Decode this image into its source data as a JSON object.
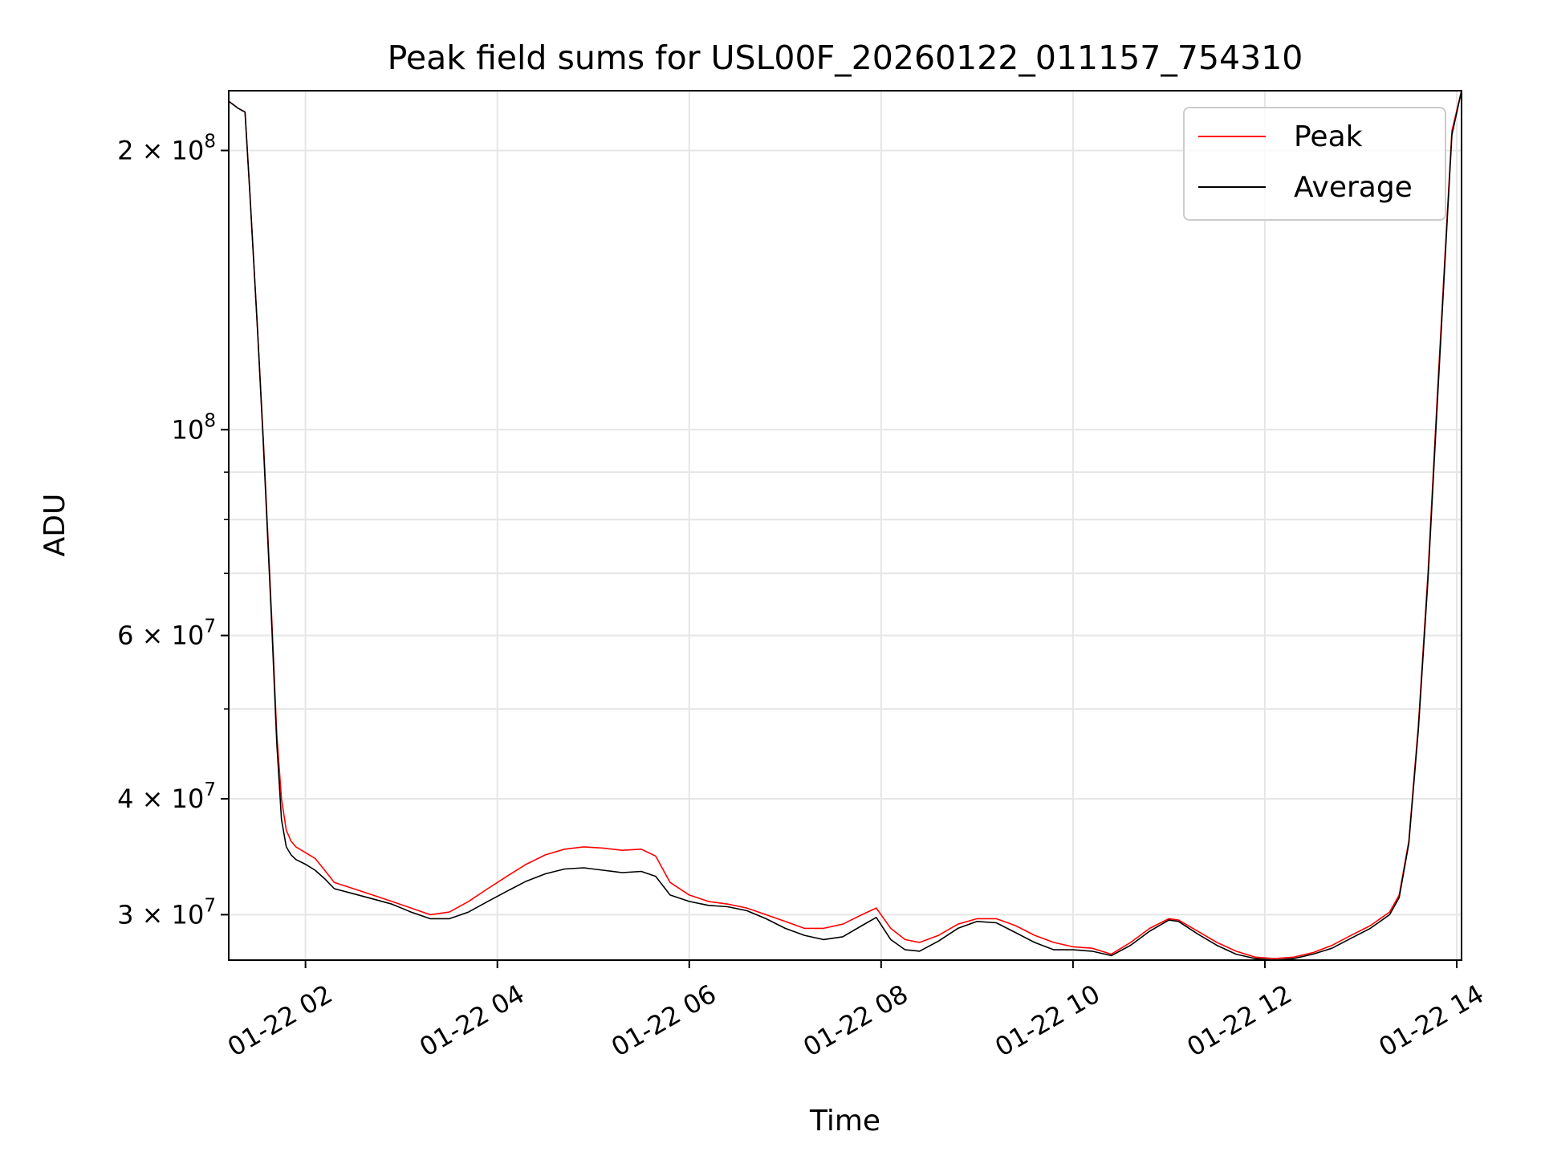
{
  "chart_data": {
    "type": "line",
    "title": "Peak field sums for USL00F_20260122_011157_754310",
    "xlabel": "Time",
    "ylabel": "ADU",
    "yscale": "log",
    "xlim": [
      1.2,
      14.05
    ],
    "ylim": [
      26800000,
      232000000
    ],
    "grid": true,
    "legend_position": "upper-right",
    "x_ticks": [
      {
        "value": 2,
        "label": "01-22 02"
      },
      {
        "value": 4,
        "label": "01-22 04"
      },
      {
        "value": 6,
        "label": "01-22 06"
      },
      {
        "value": 8,
        "label": "01-22 08"
      },
      {
        "value": 10,
        "label": "01-22 10"
      },
      {
        "value": 12,
        "label": "01-22 12"
      },
      {
        "value": 14,
        "label": "01-22 14"
      }
    ],
    "y_major_ticks": [
      {
        "value": 30000000,
        "mant": "3",
        "exp": "7"
      },
      {
        "value": 40000000,
        "mant": "4",
        "exp": "7"
      },
      {
        "value": 60000000,
        "mant": "6",
        "exp": "7"
      },
      {
        "value": 100000000,
        "mant": "",
        "exp": "8"
      },
      {
        "value": 200000000,
        "mant": "2",
        "exp": "8"
      }
    ],
    "y_minor_ticks": [
      50000000,
      70000000,
      80000000,
      90000000
    ],
    "series": [
      {
        "name": "Peak",
        "color": "#ff0000",
        "x": [
          1.2,
          1.3,
          1.37,
          1.42,
          1.5,
          1.56,
          1.6,
          1.65,
          1.7,
          1.75,
          1.8,
          1.85,
          1.9,
          2.0,
          2.1,
          2.2,
          2.3,
          2.5,
          2.7,
          2.9,
          3.1,
          3.3,
          3.5,
          3.7,
          3.9,
          4.1,
          4.3,
          4.5,
          4.7,
          4.9,
          5.1,
          5.3,
          5.5,
          5.65,
          5.8,
          6.0,
          6.2,
          6.4,
          6.6,
          6.8,
          7.0,
          7.2,
          7.4,
          7.6,
          7.8,
          7.95,
          8.1,
          8.25,
          8.4,
          8.6,
          8.8,
          9.0,
          9.2,
          9.4,
          9.6,
          9.8,
          10.0,
          10.2,
          10.4,
          10.6,
          10.8,
          11.0,
          11.1,
          11.3,
          11.5,
          11.7,
          11.9,
          12.1,
          12.3,
          12.5,
          12.7,
          12.9,
          13.1,
          13.3,
          13.4,
          13.5,
          13.6,
          13.7,
          13.8,
          13.9,
          13.95,
          14.05
        ],
        "y": [
          226000000,
          222000000,
          220000000,
          180000000,
          128000000,
          98000000,
          80000000,
          62000000,
          47000000,
          40000000,
          37000000,
          36000000,
          35500000,
          35000000,
          34500000,
          33500000,
          32500000,
          32000000,
          31500000,
          31000000,
          30500000,
          30000000,
          30200000,
          31000000,
          32000000,
          33000000,
          34000000,
          34800000,
          35300000,
          35500000,
          35400000,
          35200000,
          35300000,
          34700000,
          32500000,
          31500000,
          31000000,
          30800000,
          30500000,
          30000000,
          29500000,
          29000000,
          29000000,
          29300000,
          30000000,
          30500000,
          29000000,
          28200000,
          28000000,
          28500000,
          29300000,
          29700000,
          29700000,
          29200000,
          28500000,
          28000000,
          27700000,
          27600000,
          27200000,
          28000000,
          29000000,
          29700000,
          29600000,
          28800000,
          28000000,
          27400000,
          27000000,
          26900000,
          27000000,
          27300000,
          27800000,
          28500000,
          29200000,
          30200000,
          31500000,
          36000000,
          48000000,
          70000000,
          110000000,
          170000000,
          210000000,
          232000000
        ]
      },
      {
        "name": "Average",
        "color": "#000000",
        "x": [
          1.2,
          1.3,
          1.37,
          1.42,
          1.5,
          1.56,
          1.6,
          1.65,
          1.7,
          1.75,
          1.8,
          1.85,
          1.9,
          2.0,
          2.1,
          2.2,
          2.3,
          2.5,
          2.7,
          2.9,
          3.1,
          3.3,
          3.5,
          3.7,
          3.9,
          4.1,
          4.3,
          4.5,
          4.7,
          4.9,
          5.1,
          5.3,
          5.5,
          5.65,
          5.8,
          6.0,
          6.2,
          6.4,
          6.6,
          6.8,
          7.0,
          7.2,
          7.4,
          7.6,
          7.8,
          7.95,
          8.1,
          8.25,
          8.4,
          8.6,
          8.8,
          9.0,
          9.2,
          9.4,
          9.6,
          9.8,
          10.0,
          10.2,
          10.4,
          10.6,
          10.8,
          11.0,
          11.1,
          11.3,
          11.5,
          11.7,
          11.9,
          12.1,
          12.3,
          12.5,
          12.7,
          12.9,
          13.1,
          13.3,
          13.4,
          13.5,
          13.6,
          13.7,
          13.8,
          13.9,
          13.95,
          14.05
        ],
        "y": [
          226000000,
          222000000,
          220000000,
          180000000,
          128000000,
          97000000,
          79000000,
          61000000,
          46000000,
          38000000,
          35500000,
          34800000,
          34400000,
          34000000,
          33500000,
          32800000,
          32000000,
          31600000,
          31200000,
          30800000,
          30200000,
          29700000,
          29700000,
          30200000,
          31000000,
          31800000,
          32600000,
          33200000,
          33600000,
          33700000,
          33500000,
          33300000,
          33400000,
          33000000,
          31500000,
          31000000,
          30700000,
          30600000,
          30300000,
          29700000,
          29000000,
          28500000,
          28200000,
          28400000,
          29200000,
          29800000,
          28200000,
          27500000,
          27400000,
          28100000,
          29000000,
          29500000,
          29400000,
          28700000,
          28000000,
          27500000,
          27500000,
          27400000,
          27100000,
          27800000,
          28800000,
          29600000,
          29500000,
          28600000,
          27800000,
          27200000,
          26900000,
          26800000,
          26900000,
          27200000,
          27600000,
          28300000,
          29000000,
          30000000,
          31300000,
          35800000,
          47500000,
          69000000,
          108000000,
          168000000,
          208000000,
          232000000
        ]
      }
    ],
    "legend": [
      {
        "name": "Peak",
        "color": "#ff0000"
      },
      {
        "name": "Average",
        "color": "#000000"
      }
    ]
  }
}
